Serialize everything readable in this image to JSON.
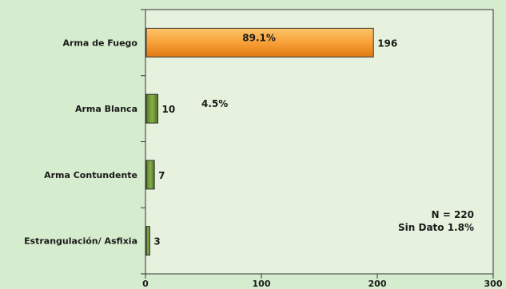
{
  "chart_data": {
    "type": "bar",
    "orientation": "horizontal",
    "categories": [
      "Arma de Fuego",
      "Arma Blanca",
      "Arma  Contundente",
      "Estrangulación/ Asfixia"
    ],
    "values": [
      196,
      10,
      7,
      3
    ],
    "value_labels": [
      "196",
      "10",
      "7",
      "3"
    ],
    "percent_labels": [
      "89.1%",
      "4.5%",
      "",
      ""
    ],
    "bar_colors": [
      "#f7a038",
      "#6f9a34",
      "#6f9a34",
      "#6f9a34"
    ],
    "xlim": [
      0,
      300
    ],
    "xticks": [
      "0",
      "100",
      "200",
      "300"
    ],
    "grid": false,
    "annotations": [
      "N = 220",
      "Sin Dato  1.8%"
    ]
  },
  "colors": {
    "background": "#d6ecce",
    "plot_background": "#e6f2dd",
    "highlight_bar": "#f7a038",
    "bar": "#6f9a34",
    "bar_outline": "#333333"
  }
}
